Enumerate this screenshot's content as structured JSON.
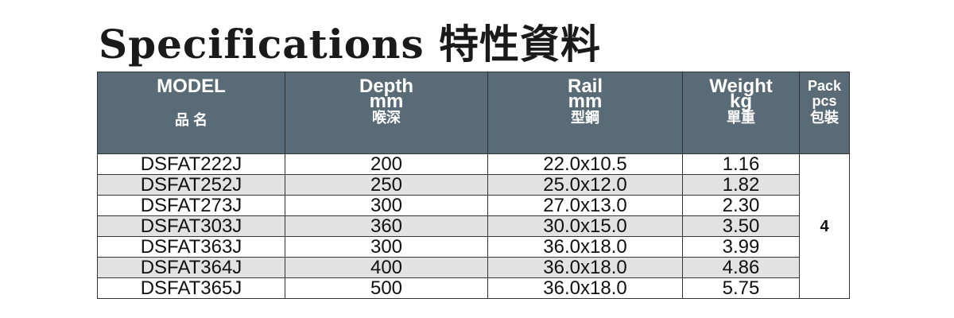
{
  "title": "Specifications 特性資料",
  "header": {
    "model": {
      "en": "MODEL",
      "cn": "品 名"
    },
    "depth": {
      "en": "Depth",
      "unit": "mm",
      "cn": "喉深"
    },
    "rail": {
      "en": "Rail",
      "unit": "mm",
      "cn": "型鋼"
    },
    "weight": {
      "en": "Weight",
      "unit": "kg",
      "cn": "單重"
    },
    "pack": {
      "en": "Pack",
      "unit": "pcs",
      "cn": "包裝"
    }
  },
  "rows": [
    {
      "model": "DSFAT222J",
      "depth": "200",
      "rail": "22.0x10.5",
      "weight": "1.16"
    },
    {
      "model": "DSFAT252J",
      "depth": "250",
      "rail": "25.0x12.0",
      "weight": "1.82"
    },
    {
      "model": "DSFAT273J",
      "depth": "300",
      "rail": "27.0x13.0",
      "weight": "2.30"
    },
    {
      "model": "DSFAT303J",
      "depth": "360",
      "rail": "30.0x15.0",
      "weight": "3.50"
    },
    {
      "model": "DSFAT363J",
      "depth": "300",
      "rail": "36.0x18.0",
      "weight": "3.99"
    },
    {
      "model": "DSFAT364J",
      "depth": "400",
      "rail": "36.0x18.0",
      "weight": "4.86"
    },
    {
      "model": "DSFAT365J",
      "depth": "500",
      "rail": "36.0x18.0",
      "weight": "5.75"
    }
  ],
  "pack_value": "4",
  "colors": {
    "header_bg": "#5a6b78",
    "alt_row": "#e2e2e2"
  }
}
